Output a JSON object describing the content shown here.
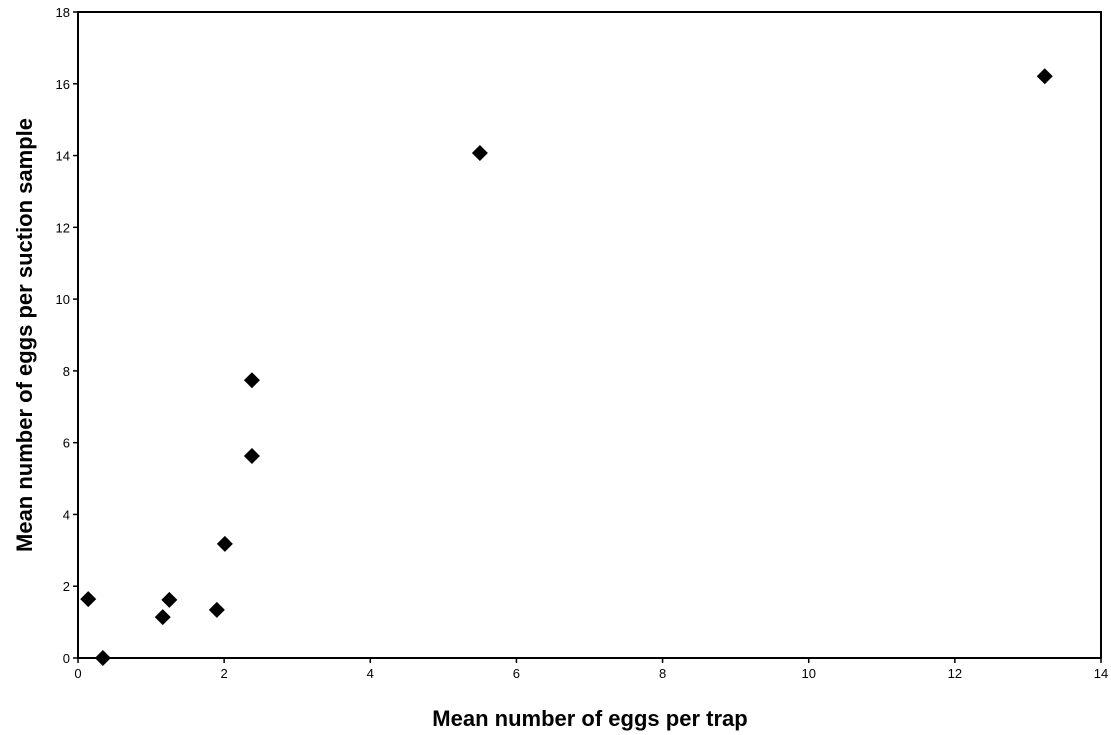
{
  "chart_data": {
    "type": "scatter",
    "x_label": "Mean number of eggs per trap",
    "y_label": "Mean number of eggs per suction sample",
    "x": [
      0.14,
      0.34,
      1.16,
      1.25,
      1.9,
      2.01,
      2.38,
      2.38,
      5.5,
      13.23
    ],
    "values": [
      1.64,
      0,
      1.14,
      1.62,
      1.34,
      3.18,
      5.63,
      7.74,
      14.07,
      16.21
    ],
    "color": "#000000",
    "xlim": [
      0,
      14
    ],
    "xticks": [
      0,
      2,
      4,
      6,
      8,
      10,
      12,
      14
    ],
    "ylim": [
      0,
      18
    ],
    "yticks": [
      0,
      2,
      4,
      6,
      8,
      10,
      12,
      14,
      16,
      18
    ],
    "grid": false
  }
}
